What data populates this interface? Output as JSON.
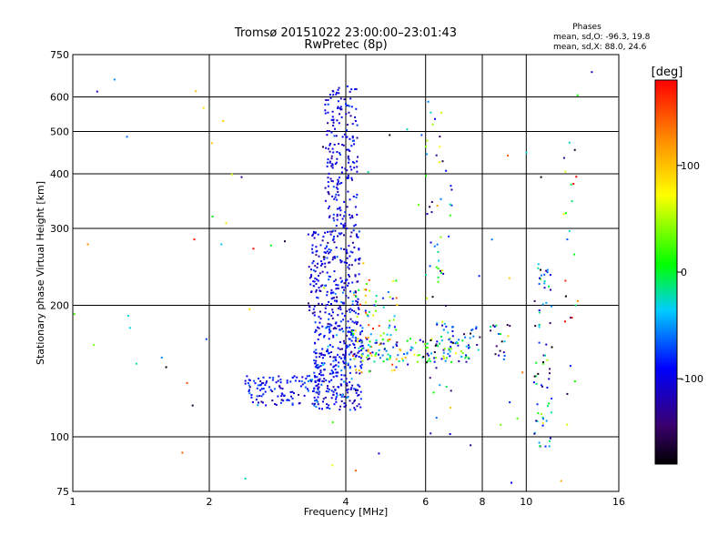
{
  "chart_data": {
    "type": "scatter",
    "title": "Tromsø 20151022 23:00:00–23:01:43",
    "subtitle": "RwPretec (8p)",
    "xlabel": "Frequency [MHz]",
    "ylabel": "Stationary phase Virtual Height [km]",
    "xscale": "log",
    "yscale": "log",
    "xlim": [
      1,
      16
    ],
    "ylim": [
      75,
      750
    ],
    "xticks": [
      1,
      2,
      4,
      6,
      8,
      10,
      16
    ],
    "yticks": [
      75,
      100,
      200,
      300,
      400,
      500,
      600,
      750
    ],
    "grid": true,
    "info": {
      "heading": "Phases",
      "line1": "mean, sd,O: -96.3, 19.8",
      "line2": "mean, sd,X:  88.0, 24.6"
    },
    "colorbar": {
      "label": "[deg]",
      "range": [
        -180,
        180
      ],
      "ticks": [
        100,
        0,
        -100
      ],
      "colormap": "rainbow",
      "placement": "right"
    },
    "clusters": [
      {
        "f": [
          3.4,
          4.35
        ],
        "h": [
          115,
          180
        ],
        "phase": -95,
        "jitter": 22,
        "n": 320
      },
      {
        "f": [
          3.3,
          4.3
        ],
        "h": [
          180,
          300
        ],
        "phase": -100,
        "jitter": 20,
        "n": 260
      },
      {
        "f": [
          3.6,
          4.25
        ],
        "h": [
          300,
          640
        ],
        "phase": -100,
        "jitter": 15,
        "n": 200
      },
      {
        "f": [
          2.4,
          3.5
        ],
        "h": [
          118,
          138
        ],
        "phase": -95,
        "jitter": 20,
        "n": 120
      },
      {
        "f": [
          4.1,
          5.2
        ],
        "h": [
          140,
          230
        ],
        "phase": 40,
        "jitter": 70,
        "n": 90
      },
      {
        "f": [
          4.3,
          7.6
        ],
        "h": [
          148,
          168
        ],
        "phase": -40,
        "jitter": 80,
        "n": 110
      },
      {
        "f": [
          6.3,
          9.2
        ],
        "h": [
          150,
          185
        ],
        "phase": -80,
        "jitter": 60,
        "n": 60
      },
      {
        "f": [
          6.0,
          6.9
        ],
        "h": [
          100,
          600
        ],
        "phase": -40,
        "jitter": 90,
        "n": 60
      },
      {
        "f": [
          10.4,
          11.4
        ],
        "h": [
          95,
          250
        ],
        "phase": -70,
        "jitter": 70,
        "n": 70
      },
      {
        "f": [
          12.0,
          13.0
        ],
        "h": [
          100,
          500
        ],
        "phase": 30,
        "jitter": 120,
        "n": 20
      },
      {
        "f": [
          1.0,
          14.0
        ],
        "h": [
          78,
          700
        ],
        "phase": 0,
        "jitter": 120,
        "n": 70
      }
    ]
  }
}
